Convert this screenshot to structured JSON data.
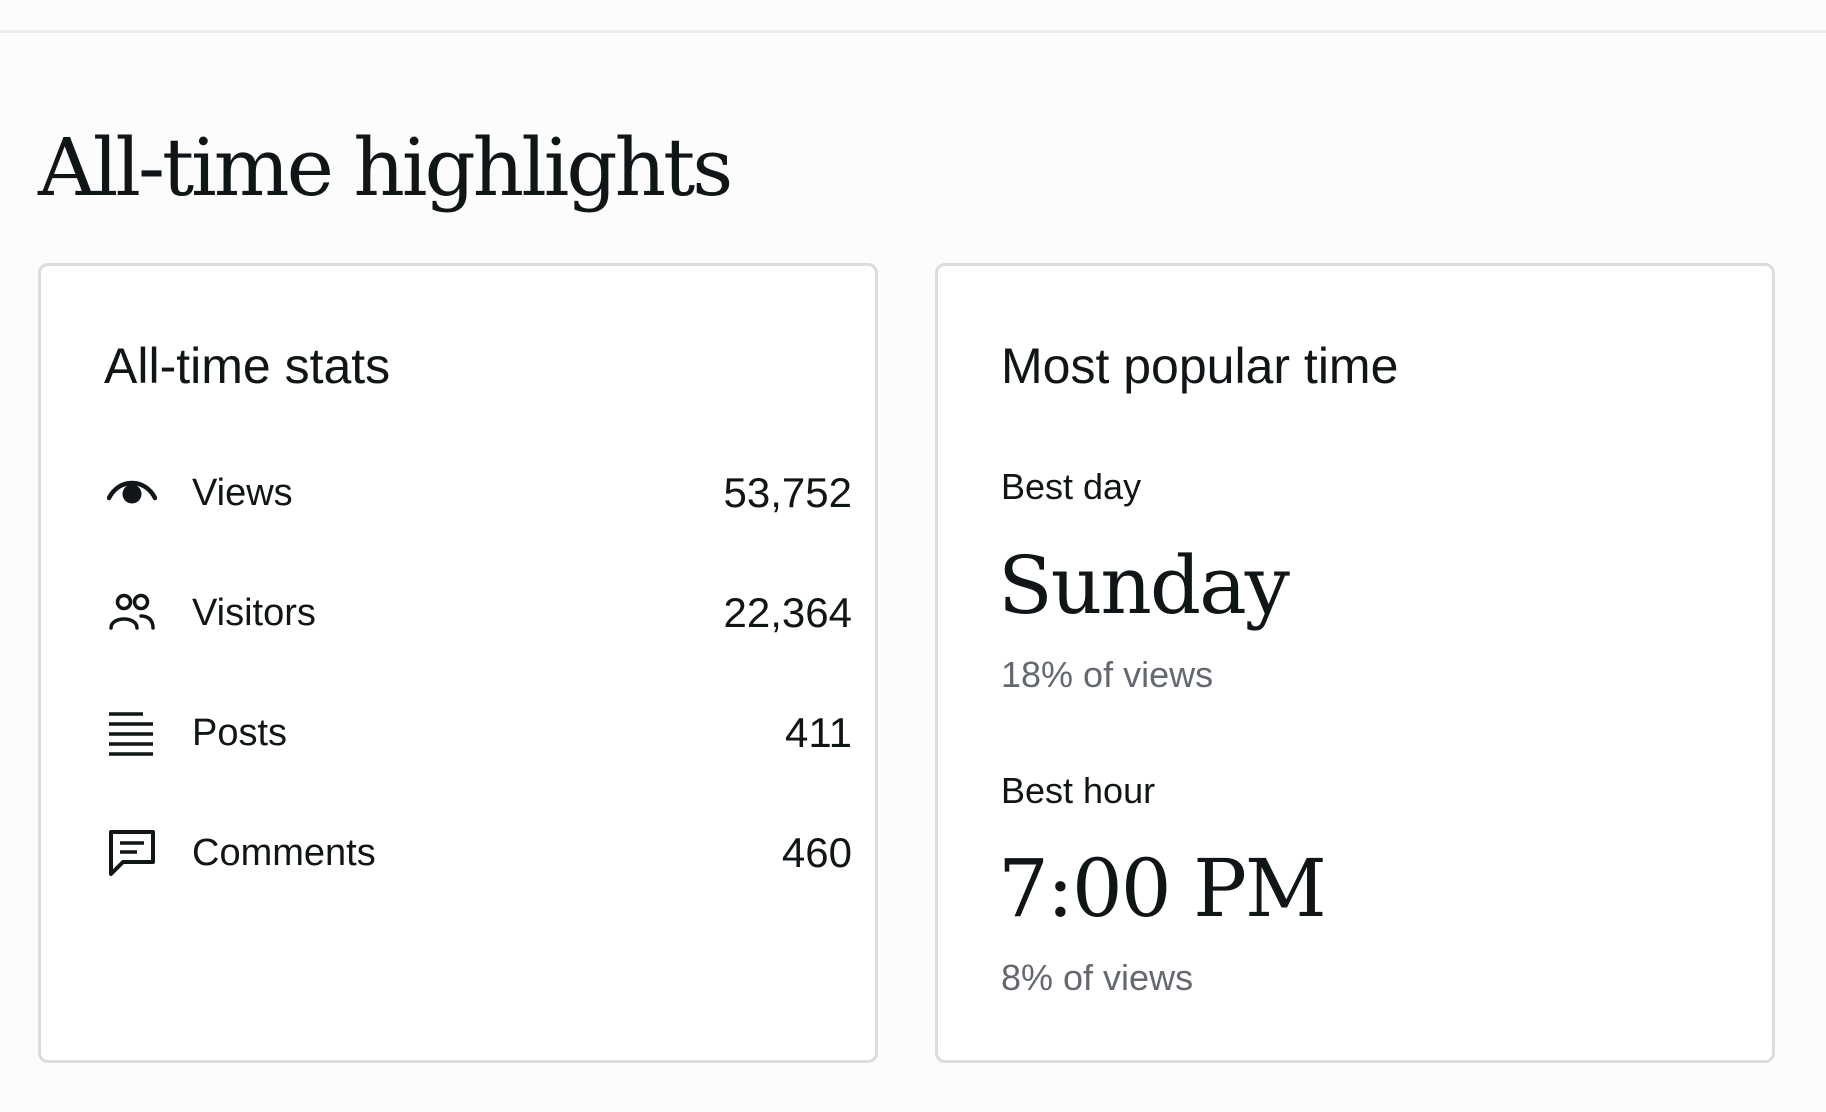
{
  "section": {
    "title": "All-time highlights"
  },
  "stats_card": {
    "title": "All-time stats",
    "items": [
      {
        "icon": "eye-icon",
        "label": "Views",
        "value": "53,752"
      },
      {
        "icon": "people-icon",
        "label": "Visitors",
        "value": "22,364"
      },
      {
        "icon": "lines-icon",
        "label": "Posts",
        "value": "411"
      },
      {
        "icon": "comment-icon",
        "label": "Comments",
        "value": "460"
      }
    ]
  },
  "popular_card": {
    "title": "Most popular time",
    "best_day": {
      "label": "Best day",
      "value": "Sunday",
      "percent": "18% of views"
    },
    "best_hour": {
      "label": "Best hour",
      "value": "7:00 PM",
      "percent": "8% of views"
    }
  },
  "colors": {
    "background": "#fcfcfc",
    "card_background": "#ffffff",
    "border": "#dcdcde",
    "text": "#101517",
    "muted_text": "#646970"
  }
}
